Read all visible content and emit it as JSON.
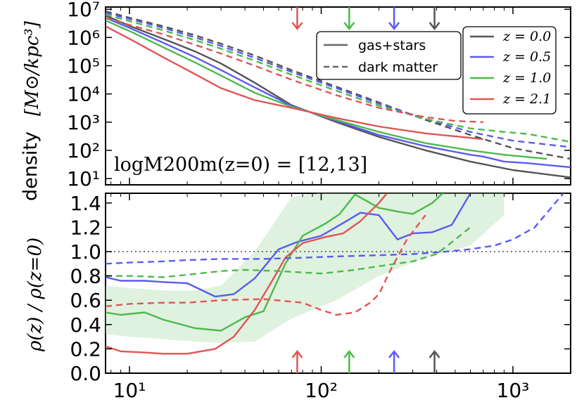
{
  "colors": {
    "z0": "#555555",
    "z05": "#5b5bf0",
    "z10": "#4cba4c",
    "z21": "#e05555",
    "band": "#b8e2b8",
    "ref": "#777777"
  },
  "chart_data": [
    {
      "type": "line",
      "panel": "top",
      "xscale": "log",
      "yscale": "log",
      "xlim": [
        7.5,
        2000
      ],
      "ylim": [
        6,
        12000000.0
      ],
      "ylabel": "density",
      "ylabel_units": "[M⊙/kpc³]",
      "annotation": "logM200m(z=0) = [12,13]",
      "x_ticks": [
        "10¹",
        "10²",
        "10³"
      ],
      "y_ticks": [
        "10¹",
        "10²",
        "10³",
        "10⁴",
        "10⁵",
        "10⁶",
        "10⁷"
      ],
      "legend_styles": [
        {
          "label": "gas+stars",
          "style": "solid"
        },
        {
          "label": "dark matter",
          "style": "dashed"
        }
      ],
      "legend_redshifts": [
        {
          "label": "z = 0.0",
          "color_key": "z0"
        },
        {
          "label": "z = 0.5",
          "color_key": "z05"
        },
        {
          "label": "z = 1.0",
          "color_key": "z10"
        },
        {
          "label": "z = 2.1",
          "color_key": "z21"
        }
      ],
      "series": [
        {
          "name": "gas+stars z=0.0",
          "color_key": "z0",
          "style": "solid",
          "x": [
            7.5,
            10,
            15,
            22,
            30,
            45,
            70,
            120,
            200,
            350,
            600,
            1000,
            2000
          ],
          "y": [
            6000000.0,
            2600000.0,
            900000.0,
            320000.0,
            120000.0,
            25000.0,
            4000.0,
            1000.0,
            300.0,
            100.0,
            40.0,
            20.0,
            11.0
          ]
        },
        {
          "name": "gas+stars z=0.5",
          "color_key": "z05",
          "style": "solid",
          "x": [
            7.5,
            10,
            15,
            22,
            30,
            45,
            70,
            120,
            200,
            350,
            600,
            700,
            900,
            1200,
            2000
          ],
          "y": [
            5000000.0,
            2200000.0,
            650000.0,
            200000.0,
            70000.0,
            17000.0,
            3800.0,
            1100.0,
            350.0,
            140.0,
            70.0,
            60.0,
            40.0,
            35.0,
            25.0
          ]
        },
        {
          "name": "gas+stars z=1.0",
          "color_key": "z10",
          "style": "solid",
          "x": [
            7.5,
            10,
            15,
            22,
            30,
            45,
            70,
            120,
            200,
            350,
            600,
            900,
            1500
          ],
          "y": [
            4000000.0,
            1700000.0,
            450000.0,
            130000.0,
            45000.0,
            11000.0,
            3500.0,
            1200.0,
            450.0,
            180.0,
            100.0,
            70.0,
            50.0
          ]
        },
        {
          "name": "gas+stars z=2.1",
          "color_key": "z21",
          "style": "solid",
          "x": [
            7.5,
            10,
            15,
            22,
            30,
            45,
            70,
            120,
            200,
            350,
            700
          ],
          "y": [
            2500000.0,
            900000.0,
            200000.0,
            50000.0,
            16000.0,
            6000.0,
            3200.0,
            1400.0,
            700.0,
            400.0,
            250.0
          ]
        },
        {
          "name": "dark matter z=0.0",
          "color_key": "z0",
          "style": "dashed",
          "x": [
            7.5,
            10,
            15,
            22,
            30,
            45,
            70,
            120,
            200,
            350,
            600,
            1000,
            2000
          ],
          "y": [
            8500000.0,
            5000000.0,
            2500000.0,
            1200000.0,
            600000.0,
            230000.0,
            70000.0,
            18000.0,
            5000.0,
            1200.0,
            350.0,
            120.0,
            50.0
          ]
        },
        {
          "name": "dark matter z=0.5",
          "color_key": "z05",
          "style": "dashed",
          "x": [
            7.5,
            10,
            15,
            22,
            30,
            45,
            70,
            120,
            200,
            350,
            600,
            1000,
            2000
          ],
          "y": [
            7500000.0,
            4500000.0,
            2200000.0,
            1000000.0,
            500000.0,
            190000.0,
            60000.0,
            16000.0,
            4500.0,
            1300.0,
            450.0,
            220.0,
            130.0
          ]
        },
        {
          "name": "dark matter z=1.0",
          "color_key": "z10",
          "style": "dashed",
          "x": [
            7.5,
            10,
            15,
            22,
            30,
            45,
            70,
            120,
            200,
            350,
            600,
            900,
            1200,
            2000
          ],
          "y": [
            6500000.0,
            3800000.0,
            1800000.0,
            800000.0,
            400000.0,
            150000.0,
            48000.0,
            13000.0,
            3800.0,
            1300.0,
            600.0,
            450.0,
            380.0,
            200.0
          ]
        },
        {
          "name": "dark matter z=2.1",
          "color_key": "z21",
          "style": "dashed",
          "x": [
            7.5,
            10,
            15,
            22,
            30,
            45,
            70,
            120,
            200,
            350,
            500,
            700
          ],
          "y": [
            5000000.0,
            2800000.0,
            1300000.0,
            550000.0,
            270000.0,
            100000.0,
            32000.0,
            9000.0,
            3200.0,
            1500.0,
            1100.0,
            1000.0
          ]
        }
      ]
    },
    {
      "type": "line",
      "panel": "bottom",
      "xscale": "log",
      "yscale": "linear",
      "xlim": [
        7.5,
        2000
      ],
      "ylim": [
        0,
        1.48
      ],
      "ylabel": "ρ(z) / ρ(z=0)",
      "x_ticks": [
        "10¹",
        "10²",
        "10³"
      ],
      "y_ticks": [
        "0.0",
        "0.2",
        "0.4",
        "0.6",
        "0.8",
        "1.0",
        "1.2",
        "1.4"
      ],
      "reference_line": 1.0,
      "band": {
        "color_key": "band",
        "x": [
          7.5,
          10,
          15,
          22,
          30,
          45,
          70,
          120,
          200,
          350,
          600,
          900
        ],
        "upper": [
          0.72,
          0.7,
          0.68,
          0.68,
          0.72,
          1.0,
          1.45,
          1.5,
          1.5,
          1.5,
          1.5,
          1.5
        ],
        "lower": [
          0.32,
          0.3,
          0.28,
          0.26,
          0.25,
          0.26,
          0.45,
          0.6,
          0.8,
          0.95,
          1.05,
          1.3
        ]
      },
      "series": [
        {
          "name": "ratio gas+stars z=0.5",
          "color_key": "z05",
          "style": "solid",
          "x": [
            7.5,
            9,
            12,
            15,
            20,
            28,
            35,
            45,
            60,
            75,
            100,
            135,
            160,
            200,
            250,
            300,
            380,
            480,
            600,
            800
          ],
          "y": [
            0.79,
            0.76,
            0.76,
            0.75,
            0.74,
            0.63,
            0.65,
            0.78,
            1.02,
            1.08,
            1.13,
            1.25,
            1.32,
            1.3,
            1.1,
            1.15,
            1.16,
            1.22,
            1.48,
            1.7
          ]
        },
        {
          "name": "ratio gas+stars z=1.0",
          "color_key": "z10",
          "style": "solid",
          "x": [
            7.5,
            9,
            12,
            15,
            22,
            30,
            40,
            50,
            65,
            80,
            105,
            125,
            150,
            200,
            250,
            300,
            380,
            480,
            600
          ],
          "y": [
            0.5,
            0.48,
            0.5,
            0.44,
            0.37,
            0.35,
            0.46,
            0.51,
            0.9,
            1.13,
            1.23,
            1.31,
            1.47,
            1.36,
            1.33,
            1.31,
            1.4,
            1.55,
            1.7
          ]
        },
        {
          "name": "ratio gas+stars z=2.1",
          "color_key": "z21",
          "style": "solid",
          "x": [
            7.5,
            9,
            12,
            15,
            20,
            28,
            35,
            45,
            55,
            65,
            80,
            105,
            130,
            160,
            200,
            240
          ],
          "y": [
            0.22,
            0.18,
            0.17,
            0.16,
            0.16,
            0.2,
            0.3,
            0.52,
            0.75,
            0.95,
            1.07,
            1.12,
            1.15,
            1.25,
            1.4,
            1.55
          ]
        },
        {
          "name": "ratio dark matter z=0.5",
          "color_key": "z05",
          "style": "dashed",
          "x": [
            7.5,
            10,
            15,
            20,
            30,
            50,
            80,
            120,
            200,
            300,
            450,
            600,
            800,
            1000,
            1300,
            2000
          ],
          "y": [
            0.9,
            0.91,
            0.92,
            0.93,
            0.94,
            0.94,
            0.95,
            0.96,
            0.97,
            0.98,
            1.0,
            1.02,
            1.05,
            1.1,
            1.2,
            1.55
          ]
        },
        {
          "name": "ratio dark matter z=1.0",
          "color_key": "z10",
          "style": "dashed",
          "x": [
            7.5,
            10,
            15,
            20,
            30,
            40,
            60,
            100,
            150,
            200,
            300,
            400,
            500,
            600
          ],
          "y": [
            0.8,
            0.8,
            0.79,
            0.81,
            0.84,
            0.85,
            0.84,
            0.82,
            0.85,
            0.88,
            0.92,
            0.98,
            1.1,
            1.2
          ]
        },
        {
          "name": "ratio dark matter z=2.1",
          "color_key": "z21",
          "style": "dashed",
          "x": [
            7.5,
            10,
            15,
            20,
            30,
            50,
            80,
            100,
            120,
            150,
            180,
            200,
            230,
            280,
            350
          ],
          "y": [
            0.55,
            0.57,
            0.58,
            0.58,
            0.6,
            0.61,
            0.58,
            0.52,
            0.48,
            0.5,
            0.58,
            0.65,
            0.85,
            1.1,
            1.3
          ]
        }
      ]
    }
  ],
  "markers": [
    {
      "x": 75,
      "color_key": "z21"
    },
    {
      "x": 140,
      "color_key": "z10"
    },
    {
      "x": 240,
      "color_key": "z05"
    },
    {
      "x": 390,
      "color_key": "z0"
    }
  ]
}
